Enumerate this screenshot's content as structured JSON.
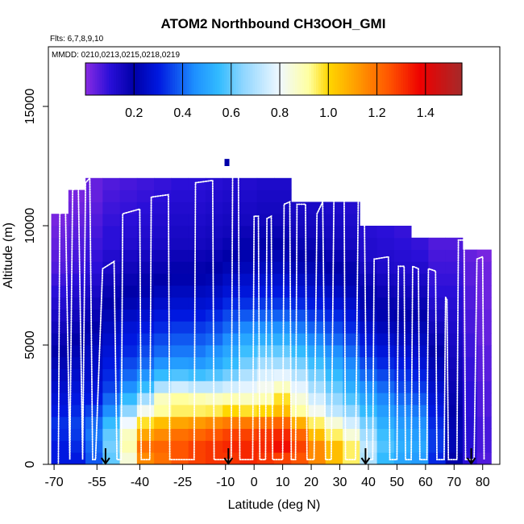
{
  "chart_data": {
    "type": "heatmap",
    "title": "ATOM2 Northbound CH3OOH_GMI",
    "flights_label": "Flts: 6,7,8,9,10",
    "mmdd_label": "MMDD: 0210,0213,0215,0218,0219",
    "xlabel": "Latitude (deg N)",
    "ylabel": "Altitude (m)",
    "xlim": [
      -72,
      86
    ],
    "ylim": [
      0,
      17500
    ],
    "x_ticks": [
      -70,
      -55,
      -40,
      -25,
      -10,
      0,
      10,
      20,
      30,
      40,
      50,
      60,
      70,
      80
    ],
    "x_tick_labels": [
      "-70",
      "-55",
      "-40",
      "-25",
      "-10",
      "0",
      "10",
      "20",
      "30",
      "40",
      "50",
      "60",
      "70",
      "80"
    ],
    "y_ticks": [
      0,
      5000,
      10000,
      15000
    ],
    "y_tick_labels": [
      "0",
      "5000",
      "10000",
      "15000"
    ],
    "colorbar": {
      "range": [
        0.0,
        1.55
      ],
      "ticks": [
        0.2,
        0.4,
        0.6,
        0.8,
        1.0,
        1.2,
        1.4
      ],
      "tick_labels": [
        "0.2",
        "0.4",
        "0.6",
        "0.8",
        "1.0",
        "1.2",
        "1.4"
      ],
      "stops": [
        {
          "v": 0.0,
          "c": "#8a2be2"
        },
        {
          "v": 0.1,
          "c": "#2a0fd8"
        },
        {
          "v": 0.2,
          "c": "#0000a8"
        },
        {
          "v": 0.3,
          "c": "#0018e0"
        },
        {
          "v": 0.45,
          "c": "#1e90ff"
        },
        {
          "v": 0.55,
          "c": "#33bbff"
        },
        {
          "v": 0.65,
          "c": "#8fd6ff"
        },
        {
          "v": 0.8,
          "c": "#f0f8ff"
        },
        {
          "v": 0.92,
          "c": "#ffffa0"
        },
        {
          "v": 1.0,
          "c": "#ffd700"
        },
        {
          "v": 1.1,
          "c": "#ffa500"
        },
        {
          "v": 1.25,
          "c": "#ff5500"
        },
        {
          "v": 1.38,
          "c": "#ee0000"
        },
        {
          "v": 1.55,
          "c": "#a52a2a"
        }
      ]
    },
    "altitude_bins_m": [
      0,
      500,
      1000,
      1500,
      2000,
      2500,
      3000,
      3500,
      4000,
      4500,
      5000,
      5500,
      6000,
      6500,
      7000,
      7500,
      8000,
      8500,
      9000,
      9500,
      10000,
      10500,
      11000,
      11500,
      12000
    ],
    "latitude_columns": [
      {
        "lat": -68,
        "top": 10500,
        "values": [
          0.3,
          0.3,
          0.32,
          0.33,
          0.3,
          0.28,
          0.26,
          0.24,
          0.22,
          0.2,
          0.18,
          0.16,
          0.14,
          0.12,
          0.1,
          0.08,
          0.06,
          0.05,
          0.04,
          0.03,
          0.02
        ]
      },
      {
        "lat": -62,
        "top": 11500,
        "values": [
          0.3,
          0.32,
          0.34,
          0.35,
          0.32,
          0.3,
          0.28,
          0.26,
          0.24,
          0.22,
          0.2,
          0.18,
          0.16,
          0.14,
          0.12,
          0.1,
          0.08,
          0.07,
          0.06,
          0.05,
          0.04,
          0.03,
          0.02
        ]
      },
      {
        "lat": -56,
        "top": 12000,
        "values": [
          0.38,
          0.4,
          0.42,
          0.4,
          0.35,
          0.3,
          0.28,
          0.26,
          0.25,
          0.24,
          0.22,
          0.2,
          0.18,
          0.16,
          0.14,
          0.12,
          0.1,
          0.09,
          0.08,
          0.07,
          0.06,
          0.05,
          0.04,
          0.04
        ]
      },
      {
        "lat": -50,
        "top": 12000,
        "values": [
          0.6,
          0.62,
          0.6,
          0.55,
          0.45,
          0.4,
          0.35,
          0.32,
          0.3,
          0.28,
          0.26,
          0.24,
          0.22,
          0.2,
          0.18,
          0.16,
          0.14,
          0.12,
          0.1,
          0.1,
          0.09,
          0.08,
          0.07,
          0.06
        ]
      },
      {
        "lat": -44,
        "top": 12000,
        "values": [
          0.85,
          0.9,
          0.88,
          0.8,
          0.65,
          0.55,
          0.45,
          0.4,
          0.36,
          0.32,
          0.3,
          0.28,
          0.25,
          0.22,
          0.2,
          0.18,
          0.16,
          0.14,
          0.12,
          0.11,
          0.1,
          0.09,
          0.08,
          0.07
        ]
      },
      {
        "lat": -38,
        "top": 12000,
        "values": [
          1.15,
          1.2,
          1.1,
          0.98,
          0.82,
          0.68,
          0.55,
          0.46,
          0.4,
          0.36,
          0.33,
          0.3,
          0.27,
          0.24,
          0.21,
          0.19,
          0.17,
          0.15,
          0.13,
          0.12,
          0.11,
          0.1,
          0.09,
          0.08
        ]
      },
      {
        "lat": -32,
        "top": 12000,
        "values": [
          1.2,
          1.22,
          1.15,
          1.05,
          0.92,
          0.88,
          0.7,
          0.55,
          0.46,
          0.4,
          0.36,
          0.32,
          0.29,
          0.26,
          0.23,
          0.2,
          0.18,
          0.16,
          0.14,
          0.13,
          0.12,
          0.11,
          0.1,
          0.09
        ]
      },
      {
        "lat": -26,
        "top": 12000,
        "values": [
          1.25,
          1.25,
          1.2,
          1.1,
          0.95,
          0.92,
          0.75,
          0.58,
          0.48,
          0.42,
          0.38,
          0.34,
          0.3,
          0.27,
          0.24,
          0.21,
          0.19,
          0.17,
          0.15,
          0.14,
          0.13,
          0.12,
          0.11,
          0.1
        ]
      },
      {
        "lat": -20,
        "top": 12000,
        "values": [
          1.28,
          1.28,
          1.22,
          1.12,
          0.95,
          0.9,
          0.72,
          0.56,
          0.47,
          0.42,
          0.38,
          0.34,
          0.3,
          0.27,
          0.24,
          0.21,
          0.19,
          0.17,
          0.15,
          0.14,
          0.13,
          0.12,
          0.11,
          0.1
        ]
      },
      {
        "lat": -14,
        "top": 12000,
        "values": [
          1.3,
          1.3,
          1.25,
          1.15,
          0.96,
          0.88,
          0.72,
          0.58,
          0.5,
          0.45,
          0.4,
          0.36,
          0.32,
          0.28,
          0.25,
          0.22,
          0.2,
          0.18,
          0.16,
          0.15,
          0.14,
          0.13,
          0.12,
          0.11
        ]
      },
      {
        "lat": -8,
        "top": 12000,
        "values": [
          1.3,
          1.32,
          1.28,
          1.18,
          1.0,
          0.9,
          0.75,
          0.62,
          0.55,
          0.5,
          0.45,
          0.4,
          0.36,
          0.32,
          0.28,
          0.25,
          0.22,
          0.2,
          0.18,
          0.16,
          0.15,
          0.14,
          0.13,
          0.12
        ]
      },
      {
        "lat": -2,
        "top": 12000,
        "values": [
          1.32,
          1.32,
          1.28,
          1.18,
          0.98,
          0.88,
          0.78,
          0.7,
          0.62,
          0.56,
          0.5,
          0.44,
          0.38,
          0.33,
          0.29,
          0.26,
          0.23,
          0.21,
          0.19,
          0.17,
          0.15,
          0.14,
          0.13,
          0.12
        ]
      },
      {
        "lat": 4,
        "top": 12000,
        "values": [
          1.3,
          1.32,
          1.3,
          1.2,
          1.0,
          0.9,
          0.82,
          0.76,
          0.68,
          0.6,
          0.52,
          0.45,
          0.39,
          0.34,
          0.3,
          0.27,
          0.24,
          0.22,
          0.2,
          0.18,
          0.16,
          0.15,
          0.14,
          0.13
        ]
      },
      {
        "lat": 10,
        "top": 12000,
        "values": [
          1.28,
          1.36,
          1.32,
          1.22,
          1.05,
          0.98,
          0.88,
          0.78,
          0.68,
          0.6,
          0.52,
          0.45,
          0.39,
          0.34,
          0.3,
          0.27,
          0.24,
          0.22,
          0.2,
          0.18,
          0.16,
          0.15,
          0.14,
          0.13
        ]
      },
      {
        "lat": 16,
        "top": 11000,
        "values": [
          1.25,
          1.28,
          1.22,
          1.08,
          0.92,
          0.85,
          0.78,
          0.7,
          0.62,
          0.55,
          0.48,
          0.42,
          0.37,
          0.32,
          0.28,
          0.25,
          0.22,
          0.2,
          0.18,
          0.16,
          0.15,
          0.14
        ]
      },
      {
        "lat": 22,
        "top": 11000,
        "values": [
          1.15,
          1.15,
          1.05,
          0.95,
          0.82,
          0.75,
          0.68,
          0.62,
          0.56,
          0.5,
          0.44,
          0.39,
          0.34,
          0.3,
          0.27,
          0.24,
          0.22,
          0.2,
          0.18,
          0.16,
          0.15,
          0.14
        ]
      },
      {
        "lat": 28,
        "top": 11000,
        "values": [
          1.05,
          1.05,
          0.95,
          0.85,
          0.72,
          0.66,
          0.6,
          0.55,
          0.5,
          0.45,
          0.4,
          0.36,
          0.32,
          0.28,
          0.25,
          0.22,
          0.2,
          0.18,
          0.16,
          0.15,
          0.14,
          0.13
        ]
      },
      {
        "lat": 34,
        "top": 11000,
        "values": [
          0.95,
          0.95,
          0.85,
          0.75,
          0.65,
          0.58,
          0.52,
          0.48,
          0.44,
          0.4,
          0.36,
          0.32,
          0.29,
          0.26,
          0.23,
          0.21,
          0.19,
          0.17,
          0.15,
          0.14,
          0.13,
          0.12
        ]
      },
      {
        "lat": 40,
        "top": 10000,
        "values": [
          0.7,
          0.72,
          0.68,
          0.62,
          0.55,
          0.5,
          0.45,
          0.4,
          0.36,
          0.32,
          0.29,
          0.26,
          0.23,
          0.21,
          0.19,
          0.17,
          0.15,
          0.13,
          0.12,
          0.11
        ]
      },
      {
        "lat": 46,
        "top": 10000,
        "values": [
          0.55,
          0.58,
          0.56,
          0.52,
          0.48,
          0.44,
          0.4,
          0.36,
          0.32,
          0.29,
          0.26,
          0.23,
          0.21,
          0.19,
          0.17,
          0.15,
          0.13,
          0.12,
          0.11,
          0.1
        ]
      },
      {
        "lat": 52,
        "top": 10000,
        "values": [
          0.5,
          0.52,
          0.5,
          0.47,
          0.44,
          0.4,
          0.36,
          0.33,
          0.3,
          0.27,
          0.24,
          0.22,
          0.2,
          0.18,
          0.16,
          0.14,
          0.12,
          0.11,
          0.1,
          0.09
        ]
      },
      {
        "lat": 58,
        "top": 9500,
        "values": [
          0.48,
          0.5,
          0.48,
          0.45,
          0.42,
          0.38,
          0.34,
          0.31,
          0.28,
          0.26,
          0.24,
          0.22,
          0.2,
          0.18,
          0.16,
          0.14,
          0.12,
          0.1,
          0.09
        ]
      },
      {
        "lat": 64,
        "top": 9500,
        "values": [
          0.32,
          0.34,
          0.34,
          0.32,
          0.3,
          0.28,
          0.26,
          0.24,
          0.22,
          0.2,
          0.18,
          0.16,
          0.14,
          0.12,
          0.1,
          0.09,
          0.08,
          0.07,
          0.06
        ]
      },
      {
        "lat": 70,
        "top": 9500,
        "values": [
          0.2,
          0.22,
          0.22,
          0.21,
          0.2,
          0.19,
          0.18,
          0.17,
          0.16,
          0.15,
          0.14,
          0.13,
          0.12,
          0.11,
          0.1,
          0.09,
          0.08,
          0.07,
          0.06
        ]
      },
      {
        "lat": 76,
        "top": 9000,
        "values": [
          0.1,
          0.11,
          0.11,
          0.11,
          0.1,
          0.1,
          0.1,
          0.09,
          0.09,
          0.08,
          0.08,
          0.07,
          0.07,
          0.06,
          0.06,
          0.05,
          0.05,
          0.04
        ]
      },
      {
        "lat": 80,
        "top": 9000,
        "values": [
          0.06,
          0.07,
          0.07,
          0.07,
          0.06,
          0.06,
          0.06,
          0.05,
          0.05,
          0.05,
          0.04,
          0.04,
          0.04,
          0.03,
          0.03,
          0.03,
          0.03,
          0.02
        ]
      }
    ],
    "isolated_cell": {
      "lat": -9.5,
      "alt_range": [
        12500,
        12800
      ],
      "value": 0.2
    },
    "flight_track": [
      [
        -68.5,
        0
      ],
      [
        -68.0,
        10500
      ],
      [
        -66.0,
        10600
      ],
      [
        -64.5,
        200
      ],
      [
        -63.5,
        11500
      ],
      [
        -61.5,
        11600
      ],
      [
        -60.0,
        200
      ],
      [
        -59.0,
        11800
      ],
      [
        -57.5,
        12000
      ],
      [
        -56.5,
        200
      ],
      [
        -55.5,
        200
      ],
      [
        -53.0,
        8200
      ],
      [
        -49.0,
        8500
      ],
      [
        -48.0,
        200
      ],
      [
        -46.5,
        200
      ],
      [
        -46.0,
        10500
      ],
      [
        -40.0,
        10700
      ],
      [
        -39.5,
        200
      ],
      [
        -36.5,
        200
      ],
      [
        -36.0,
        11200
      ],
      [
        -30.0,
        11300
      ],
      [
        -29.5,
        200
      ],
      [
        -21.0,
        200
      ],
      [
        -20.5,
        11800
      ],
      [
        -14.5,
        11900
      ],
      [
        -14.0,
        200
      ],
      [
        -8.0,
        200
      ],
      [
        -7.5,
        12300
      ],
      [
        -5.5,
        12400
      ],
      [
        -5.0,
        200
      ],
      [
        -0.5,
        200
      ],
      [
        0.0,
        10400
      ],
      [
        1.5,
        10400
      ],
      [
        2.0,
        200
      ],
      [
        4.0,
        200
      ],
      [
        4.5,
        10300
      ],
      [
        6.0,
        10400
      ],
      [
        6.5,
        200
      ],
      [
        10.0,
        200
      ],
      [
        10.5,
        10900
      ],
      [
        12.5,
        11000
      ],
      [
        13.0,
        200
      ],
      [
        14.5,
        200
      ],
      [
        15.0,
        10900
      ],
      [
        18.0,
        10900
      ],
      [
        18.5,
        200
      ],
      [
        21.0,
        200
      ],
      [
        22.0,
        10500
      ],
      [
        24.0,
        11000
      ],
      [
        25.0,
        200
      ],
      [
        27.0,
        200
      ],
      [
        28.0,
        11700
      ],
      [
        31.5,
        11800
      ],
      [
        32.0,
        200
      ],
      [
        35.5,
        200
      ],
      [
        36.5,
        11700
      ],
      [
        38.5,
        11800
      ],
      [
        39.5,
        200
      ],
      [
        41.5,
        200
      ],
      [
        42.0,
        8600
      ],
      [
        47.0,
        8700
      ],
      [
        47.5,
        200
      ],
      [
        50.0,
        200
      ],
      [
        50.5,
        8300
      ],
      [
        52.5,
        8300
      ],
      [
        53.0,
        200
      ],
      [
        55.0,
        200
      ],
      [
        55.5,
        8300
      ],
      [
        57.5,
        8200
      ],
      [
        58.0,
        200
      ],
      [
        60.5,
        200
      ],
      [
        61.0,
        8200
      ],
      [
        63.5,
        8100
      ],
      [
        64.0,
        200
      ],
      [
        66.5,
        200
      ],
      [
        67.0,
        7000
      ],
      [
        67.5,
        6900
      ],
      [
        68.0,
        200
      ],
      [
        71.0,
        200
      ],
      [
        71.5,
        9400
      ],
      [
        73.5,
        9400
      ],
      [
        74.0,
        200
      ],
      [
        77.0,
        200
      ],
      [
        78.0,
        8600
      ],
      [
        80.0,
        8700
      ],
      [
        80.5,
        200
      ]
    ],
    "arrow_latitudes": [
      -52,
      -9,
      39,
      76
    ]
  }
}
